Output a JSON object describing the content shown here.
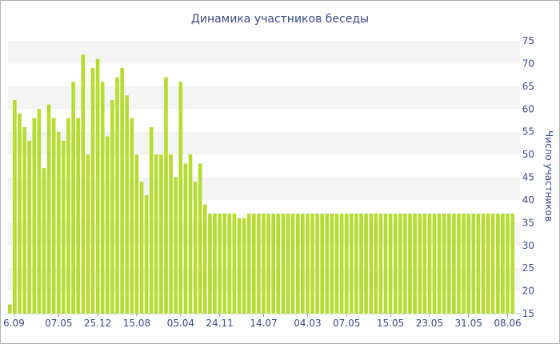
{
  "chart_data": {
    "type": "bar",
    "title": "Динамика участников беседы",
    "ylabel": "Число участников",
    "xlabel": "",
    "ylim": [
      15,
      75
    ],
    "yticks": [
      15,
      20,
      25,
      30,
      35,
      40,
      45,
      50,
      55,
      60,
      65,
      70,
      75
    ],
    "y_axis_side": "right",
    "grid": "alternating horizontal bands",
    "bar_color": "#b5dd2f",
    "band_color": "#f4f4f4",
    "text_color": "#3a4a8a",
    "x_tick_labels": [
      "6.09",
      "07.05",
      "25.12",
      "15.08",
      "05.04",
      "24.11",
      "14.07",
      "04.03",
      "07.05",
      "15.05",
      "23.05",
      "31.05",
      "08.06"
    ],
    "x_tick_bar_index": [
      1,
      10,
      18,
      26,
      35,
      43,
      52,
      61,
      69,
      78,
      86,
      94,
      102
    ],
    "values": [
      17,
      62,
      59,
      56,
      53,
      58,
      60,
      47,
      61,
      58,
      55,
      53,
      58,
      66,
      58,
      72,
      50,
      69,
      71,
      66,
      54,
      62,
      67,
      69,
      63,
      58,
      50,
      44,
      41,
      56,
      50,
      50,
      67,
      50,
      45,
      66,
      48,
      50,
      44,
      48,
      39,
      37,
      37,
      37,
      37,
      37,
      37,
      36,
      36,
      37,
      37,
      37,
      37,
      37,
      37,
      37,
      37,
      37,
      37,
      37,
      37,
      37,
      37,
      37,
      37,
      37,
      37,
      37,
      37,
      37,
      37,
      37,
      37,
      37,
      37,
      37,
      37,
      37,
      37,
      37,
      37,
      37,
      37,
      37,
      37,
      37,
      37,
      37,
      37,
      37,
      37,
      37,
      37,
      37,
      37,
      37,
      37,
      37,
      37,
      37,
      37,
      37,
      37,
      37
    ]
  }
}
